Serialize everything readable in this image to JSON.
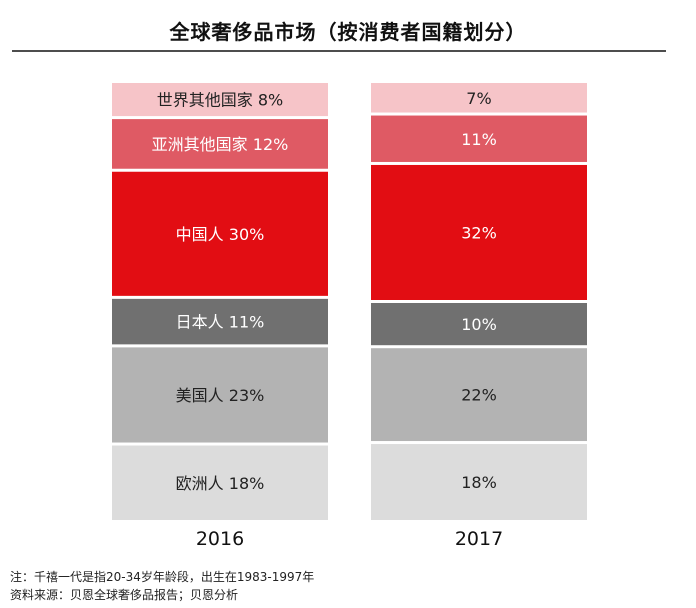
{
  "title": "全球奢侈品市场（按消费者国籍划分）",
  "notes": [
    "注：千禧一代是指20-34岁年龄段，出生在1983-1997年",
    "资料来源：贝恩全球奢侈品报告；贝恩分析"
  ],
  "chart_data": {
    "type": "bar",
    "stacked": true,
    "title": "全球奢侈品市场（按消费者国籍划分）",
    "categories": [
      "2016",
      "2017"
    ],
    "unit": "%",
    "series": [
      {
        "name": "欧洲人",
        "values": [
          18,
          18
        ],
        "labels": [
          "欧洲人 18%",
          "18%"
        ],
        "color": "#dcdcdc",
        "text_color": "#222222"
      },
      {
        "name": "美国人",
        "values": [
          23,
          22
        ],
        "labels": [
          "美国人 23%",
          "22%"
        ],
        "color": "#b3b3b3",
        "text_color": "#222222"
      },
      {
        "name": "日本人",
        "values": [
          11,
          10
        ],
        "labels": [
          "日本人 11%",
          "10%"
        ],
        "color": "#707070",
        "text_color": "#ffffff"
      },
      {
        "name": "中国人",
        "values": [
          30,
          32
        ],
        "labels": [
          "中国人 30%",
          "32%"
        ],
        "color": "#e20d13",
        "text_color": "#ffffff"
      },
      {
        "name": "亚洲其他国家",
        "values": [
          12,
          11
        ],
        "labels": [
          "亚洲其他国家 12%",
          "11%"
        ],
        "color": "#df5a64",
        "text_color": "#ffffff"
      },
      {
        "name": "世界其他国家",
        "values": [
          8,
          7
        ],
        "labels": [
          "世界其他国家 8%",
          "7%"
        ],
        "color": "#f6c4c8",
        "text_color": "#222222"
      }
    ]
  }
}
